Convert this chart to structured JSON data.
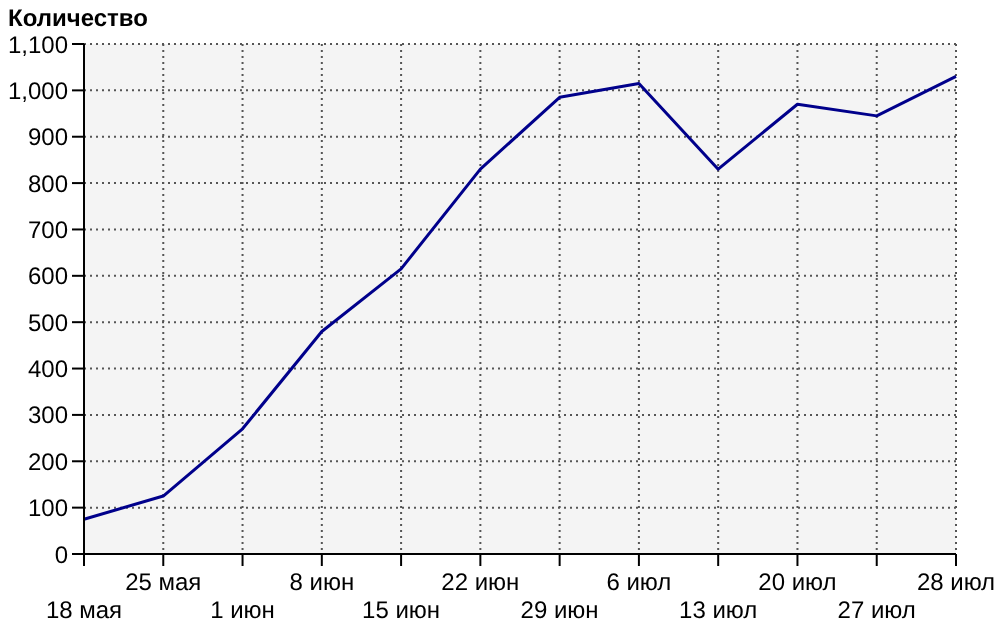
{
  "chart_data": {
    "type": "line",
    "ylabel": "Количество",
    "categories": [
      "18 мая",
      "25 мая",
      "1 июн",
      "8 июн",
      "15 июн",
      "22 июн",
      "29 июн",
      "6 июл",
      "13 июл",
      "20 июл",
      "27 июл",
      "28 июл"
    ],
    "series": [
      {
        "color": "#00008b",
        "values": [
          75,
          125,
          270,
          480,
          615,
          830,
          985,
          1015,
          830,
          970,
          945,
          1030
        ]
      }
    ],
    "ylim": [
      0,
      1100
    ],
    "yticks": [
      {
        "value": 0,
        "label": "0"
      },
      {
        "value": 100,
        "label": "100"
      },
      {
        "value": 200,
        "label": "200"
      },
      {
        "value": 300,
        "label": "300"
      },
      {
        "value": 400,
        "label": "400"
      },
      {
        "value": 500,
        "label": "500"
      },
      {
        "value": 600,
        "label": "600"
      },
      {
        "value": 700,
        "label": "700"
      },
      {
        "value": 800,
        "label": "800"
      },
      {
        "value": 900,
        "label": "900"
      },
      {
        "value": 1000,
        "label": "1,000"
      },
      {
        "value": 1100,
        "label": "1,100"
      }
    ],
    "grid": true,
    "marker": "none",
    "line_style": "solid",
    "legend": false
  }
}
